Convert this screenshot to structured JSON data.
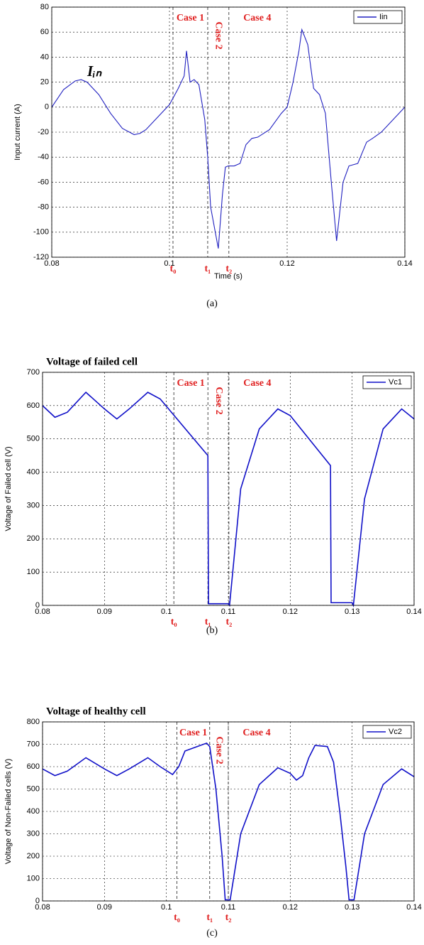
{
  "chart_data": [
    {
      "type": "line",
      "caption": "(a)",
      "xlabel": "Time (s)",
      "ylabel": "Input current (A)",
      "annotation": "Iᵢₙ",
      "x": [
        0.08,
        0.082,
        0.084,
        0.085,
        0.086,
        0.088,
        0.09,
        0.092,
        0.094,
        0.095,
        0.096,
        0.098,
        0.1,
        0.1015,
        0.1025,
        0.1029,
        0.1035,
        0.1042,
        0.105,
        0.106,
        0.1065,
        0.107,
        0.1083,
        0.109,
        0.1095,
        0.11,
        0.111,
        0.112,
        0.113,
        0.114,
        0.115,
        0.117,
        0.119,
        0.12,
        0.121,
        0.122,
        0.1225,
        0.1235,
        0.1245,
        0.1255,
        0.1265,
        0.1275,
        0.1284,
        0.1295,
        0.1305,
        0.132,
        0.1335,
        0.1345,
        0.136,
        0.138,
        0.14
      ],
      "series": [
        {
          "name": "Iin",
          "color": "#2020c0",
          "values": [
            0,
            14,
            21,
            22,
            20,
            10,
            -5,
            -17,
            -22,
            -21,
            -18,
            -8,
            2,
            15,
            25,
            45,
            20,
            22,
            18,
            -10,
            -40,
            -80,
            -113,
            -70,
            -48,
            -47,
            -47,
            -45,
            -30,
            -25,
            -24,
            -18,
            -5,
            0,
            20,
            45,
            62,
            50,
            15,
            10,
            -5,
            -60,
            -107,
            -60,
            -47,
            -45,
            -28,
            -25,
            -20,
            -10,
            0
          ]
        }
      ],
      "xlim": [
        0.08,
        0.14
      ],
      "ylim": [
        -120,
        80
      ],
      "xticks": [
        0.08,
        0.1,
        0.12,
        0.14
      ],
      "yticks": [
        -120,
        -100,
        -80,
        -60,
        -40,
        -20,
        0,
        20,
        40,
        60,
        80
      ],
      "grid": true,
      "legend": "upper right",
      "markers": [
        {
          "label": "t₀",
          "x": 0.1006
        },
        {
          "label": "t₁",
          "x": 0.1065
        },
        {
          "label": "t₂",
          "x": 0.1101
        }
      ],
      "cases": [
        "Case 1",
        "Case 2",
        "Case 4"
      ]
    },
    {
      "type": "line",
      "title": "Voltage of failed cell",
      "caption": "(b)",
      "ylabel": "Voltage of Failed cell (V)",
      "x": [
        0.08,
        0.082,
        0.084,
        0.087,
        0.09,
        0.092,
        0.094,
        0.097,
        0.099,
        0.1067,
        0.1068,
        0.11,
        0.1102,
        0.112,
        0.115,
        0.118,
        0.12,
        0.1265,
        0.1266,
        0.13,
        0.1302,
        0.132,
        0.135,
        0.138,
        0.14
      ],
      "series": [
        {
          "name": "Vc1",
          "color": "#1010c8",
          "values": [
            600,
            565,
            580,
            640,
            590,
            560,
            590,
            640,
            620,
            450,
            5,
            5,
            0,
            350,
            530,
            590,
            570,
            420,
            8,
            8,
            0,
            320,
            530,
            590,
            560
          ]
        }
      ],
      "xlim": [
        0.08,
        0.14
      ],
      "ylim": [
        0,
        700
      ],
      "xticks": [
        0.08,
        0.09,
        0.1,
        0.11,
        0.12,
        0.13,
        0.14
      ],
      "yticks": [
        0,
        100,
        200,
        300,
        400,
        500,
        600,
        700
      ],
      "grid": true,
      "legend": "upper right",
      "markers": [
        {
          "label": "t₀",
          "x": 0.1012
        },
        {
          "label": "t₁",
          "x": 0.1067
        },
        {
          "label": "t₂",
          "x": 0.1101
        }
      ],
      "cases": [
        "Case 1",
        "Case 2",
        "Case 4"
      ]
    },
    {
      "type": "line",
      "title": "Voltage of healthy cell",
      "caption": "(c)",
      "ylabel": "Voltage of Non-Failed cells (V)",
      "x": [
        0.08,
        0.082,
        0.084,
        0.087,
        0.09,
        0.092,
        0.094,
        0.097,
        0.099,
        0.101,
        0.102,
        0.103,
        0.105,
        0.1065,
        0.107,
        0.108,
        0.109,
        0.1095,
        0.1103,
        0.112,
        0.115,
        0.118,
        0.12,
        0.121,
        0.122,
        0.123,
        0.124,
        0.126,
        0.127,
        0.128,
        0.129,
        0.1295,
        0.1303,
        0.132,
        0.135,
        0.138,
        0.14
      ],
      "series": [
        {
          "name": "Vc2",
          "color": "#1010c8",
          "values": [
            590,
            560,
            580,
            640,
            590,
            560,
            590,
            640,
            600,
            565,
            600,
            670,
            690,
            705,
            690,
            500,
            200,
            5,
            5,
            300,
            520,
            595,
            570,
            540,
            560,
            640,
            695,
            690,
            620,
            400,
            150,
            5,
            5,
            300,
            520,
            590,
            555
          ]
        }
      ],
      "xlim": [
        0.08,
        0.14
      ],
      "ylim": [
        0,
        800
      ],
      "xticks": [
        0.08,
        0.09,
        0.1,
        0.11,
        0.12,
        0.13,
        0.14
      ],
      "yticks": [
        0,
        100,
        200,
        300,
        400,
        500,
        600,
        700,
        800
      ],
      "grid": true,
      "legend": "upper right",
      "markers": [
        {
          "label": "t₀",
          "x": 0.1017
        },
        {
          "label": "t₁",
          "x": 0.107
        },
        {
          "label": "t₂",
          "x": 0.11
        }
      ],
      "cases": [
        "Case 1",
        "Case 2",
        "Case 4"
      ]
    }
  ]
}
